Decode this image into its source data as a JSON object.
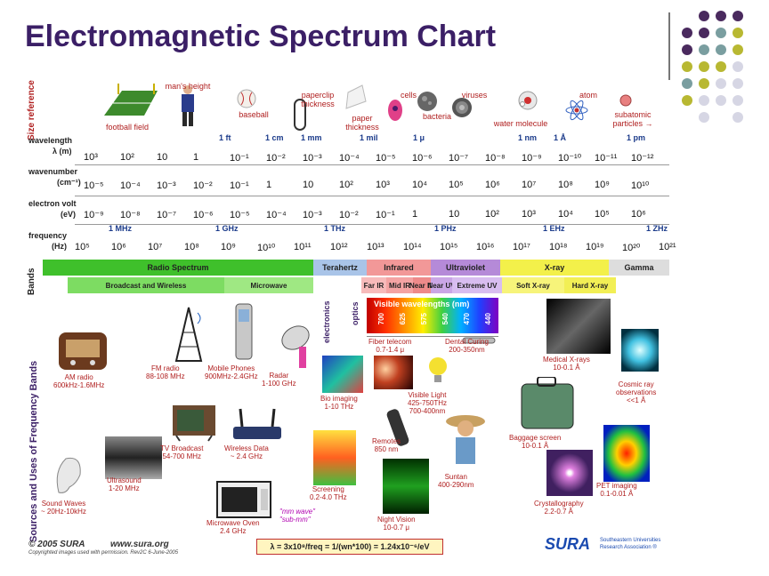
{
  "title": "Electromagnetic Spectrum Chart",
  "left_labels": {
    "size_reference": "Size reference",
    "bands": "Bands",
    "sources": "Sources and Uses of Frequency Bands"
  },
  "size_refs": [
    "football field",
    "man's height",
    "baseball",
    "paperclip thickness",
    "paper thickness",
    "cells",
    "bacteria",
    "viruses",
    "water molecule",
    "atom",
    "subatomic particles →"
  ],
  "wavelength": {
    "label": "wavelength",
    "unit": "λ (m)",
    "named": [
      "1 ft",
      "1 cm",
      "1 mm",
      "1 mil",
      "1 μ",
      "1 nm",
      "1 Å",
      "1 pm"
    ],
    "ticks": [
      "10³",
      "10²",
      "10",
      "1",
      "10⁻¹",
      "10⁻²",
      "10⁻³",
      "10⁻⁴",
      "10⁻⁵",
      "10⁻⁶",
      "10⁻⁷",
      "10⁻⁸",
      "10⁻⁹",
      "10⁻¹⁰",
      "10⁻¹¹",
      "10⁻¹²"
    ]
  },
  "wavenumber": {
    "label": "wavenumber",
    "unit": "(cm⁻¹)",
    "ticks": [
      "10⁻⁵",
      "10⁻⁴",
      "10⁻³",
      "10⁻²",
      "10⁻¹",
      "1",
      "10",
      "10²",
      "10³",
      "10⁴",
      "10⁵",
      "10⁶",
      "10⁷",
      "10⁸",
      "10⁹",
      "10¹⁰"
    ]
  },
  "electron_volt": {
    "label": "electron volt",
    "unit": "(eV)",
    "ticks": [
      "10⁻⁹",
      "10⁻⁸",
      "10⁻⁷",
      "10⁻⁶",
      "10⁻⁵",
      "10⁻⁴",
      "10⁻³",
      "10⁻²",
      "10⁻¹",
      "1",
      "10",
      "10²",
      "10³",
      "10⁴",
      "10⁵",
      "10⁶"
    ]
  },
  "frequency": {
    "label": "frequency",
    "unit": "(Hz)",
    "named": [
      "1 MHz",
      "1 GHz",
      "1 THz",
      "1 PHz",
      "1 EHz",
      "1 ZHz"
    ],
    "ticks": [
      "10⁵",
      "10⁶",
      "10⁷",
      "10⁸",
      "10⁹",
      "10¹⁰",
      "10¹¹",
      "10¹²",
      "10¹³",
      "10¹⁴",
      "10¹⁵",
      "10¹⁶",
      "10¹⁷",
      "10¹⁸",
      "10¹⁹",
      "10²⁰",
      "10²¹"
    ]
  },
  "bands_top": [
    {
      "label": "Radio Spectrum",
      "color": "#3fc02b"
    },
    {
      "label": "Terahertz",
      "color": "#a9c4e8"
    },
    {
      "label": "Infrared",
      "color": "#f29898"
    },
    {
      "label": "Ultraviolet",
      "color": "#b58ad8"
    },
    {
      "label": "X-ray",
      "color": "#f3f04a"
    },
    {
      "label": "Gamma",
      "color": "#dddddd"
    }
  ],
  "bands_sub": [
    {
      "label": "Broadcast and Wireless",
      "color": "#7ddc62"
    },
    {
      "label": "Microwave",
      "color": "#9fe883"
    },
    {
      "label": "Far IR",
      "color": "#f7baba"
    },
    {
      "label": "Mid IR",
      "color": "#f4a3a3"
    },
    {
      "label": "Near IR",
      "color": "#ee8a8a"
    },
    {
      "label": "Near UV",
      "color": "#caa6e6"
    },
    {
      "label": "Extreme UV",
      "color": "#d8bdf0"
    },
    {
      "label": "Soft X-ray",
      "color": "#f7f47a"
    },
    {
      "label": "Hard X-ray",
      "color": "#f2ef55"
    }
  ],
  "visible": {
    "title": "Visible wavelengths (nm)",
    "ticks": [
      "700",
      "625",
      "575",
      "540",
      "470",
      "440"
    ]
  },
  "side_labels": {
    "electronics": "electronics",
    "optics": "optics"
  },
  "sources": {
    "am": "AM radio\n600kHz-1.6MHz",
    "fm": "FM radio\n88-108 MHz",
    "mobile": "Mobile Phones\n900MHz-2.4GHz",
    "radar": "Radar\n1-100 GHz",
    "bio": "Bio imaging\n1-10 THz",
    "fiber": "Fiber telecom\n0.7-1.4 μ",
    "dental": "Dental Curing\n200-350nm",
    "visible_light": "Visible Light\n425-750THz\n700-400nm",
    "medical": "Medical X-rays\n10-0.1 Å",
    "cosmic": "Cosmic ray\nobservations\n<<1 Å",
    "tv": "TV Broadcast\n54-700 MHz",
    "wireless": "Wireless Data\n~ 2.4 GHz",
    "remotes": "Remotes\n850 nm",
    "baggage": "Baggage screen\n10-0.1 Å",
    "ultrasound": "Ultrasound\n1-20 MHz",
    "screening": "Screening\n0.2-4.0 THz",
    "suntan": "Suntan\n400-290nm",
    "pet": "PET imaging\n0.1-0.01 Å",
    "sound": "Sound Waves\n~ 20Hz-10kHz",
    "microwave": "Microwave Oven\n2.4 GHz",
    "night": "Night Vision\n10-0.7 μ",
    "crystal": "Crystallography\n2.2-0.7 Å",
    "mmwave": "\"mm wave\"\n\"sub-mm\""
  },
  "footer": {
    "copyright": "© 2005 SURA",
    "url": "www.sura.org",
    "credits": "Copyrighted images used with permission. Rev2C 6-June-2005",
    "formula": "λ = 3x10⁸/freq = 1/(wn*100) = 1.24x10⁻⁶/eV",
    "logo": "SURA",
    "org": "Southeastern Universities\nResearch Association ®"
  },
  "colors": {
    "title": "#3b1f66",
    "accent_red": "#b02020",
    "dot_purple": "#4a2a5e",
    "dot_teal": "#7a9ea0",
    "dot_olive": "#b8b832",
    "dot_lilac": "#d6d6e4"
  }
}
